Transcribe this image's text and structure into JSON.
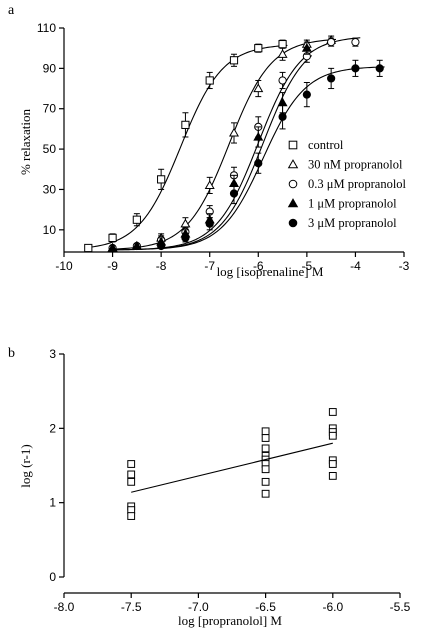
{
  "chart_data": [
    {
      "panel": "a",
      "type": "line",
      "xlabel": "log [isoprenaline] M",
      "ylabel": "% relaxation",
      "xlim": [
        -10,
        -3
      ],
      "ylim": [
        0,
        110
      ],
      "xticks": [
        -10,
        -9,
        -8,
        -7,
        -6,
        -5,
        -4,
        -3
      ],
      "yticks": [
        10,
        30,
        50,
        70,
        90,
        110
      ],
      "legend": "right",
      "series": [
        {
          "name": "control",
          "marker": "square-open",
          "x": [
            -9.5,
            -9,
            -8.5,
            -8,
            -7.5,
            -7,
            -6.5,
            -6,
            -5.5
          ],
          "y": [
            1,
            6,
            15,
            35,
            62,
            84,
            94,
            100,
            102
          ],
          "err": [
            1,
            2,
            3,
            5,
            6,
            4,
            3,
            2,
            2
          ],
          "fit": {
            "bottom": 0,
            "top": 102,
            "logEC50": -7.6,
            "hill": 1
          }
        },
        {
          "name": "30 nM propranolol",
          "marker": "triangle-open",
          "x": [
            -9,
            -8.5,
            -8,
            -7.5,
            -7,
            -6.5,
            -6,
            -5.5,
            -5,
            -4.5
          ],
          "y": [
            1,
            2,
            6,
            13,
            32,
            58,
            80,
            97,
            102,
            104
          ],
          "err": [
            1,
            1,
            2,
            3,
            4,
            5,
            4,
            3,
            2,
            2
          ],
          "fit": {
            "bottom": 0,
            "top": 105,
            "logEC50": -6.6,
            "hill": 1
          }
        },
        {
          "name": "0.3 μM propranolol",
          "marker": "circle-open",
          "x": [
            -9,
            -8.5,
            -8,
            -7.5,
            -7,
            -6.5,
            -6,
            -5.5,
            -5,
            -4.5,
            -4
          ],
          "y": [
            1,
            2,
            5,
            9,
            19,
            37,
            61,
            84,
            96,
            103,
            103
          ],
          "err": [
            1,
            1,
            2,
            2,
            3,
            4,
            5,
            4,
            3,
            2,
            2
          ],
          "fit": {
            "bottom": 0,
            "top": 106,
            "logEC50": -6.0,
            "hill": 1
          }
        },
        {
          "name": "1 μM propranolol",
          "marker": "triangle-filled",
          "x": [
            -9,
            -8.5,
            -8,
            -7.5,
            -7,
            -6.5,
            -6,
            -5.5,
            -5
          ],
          "y": [
            1,
            2,
            4,
            8,
            15,
            33,
            56,
            73,
            100
          ],
          "err": [
            1,
            1,
            2,
            2,
            3,
            4,
            5,
            5,
            3
          ],
          "fit": {
            "bottom": 0,
            "top": 106,
            "logEC50": -5.9,
            "hill": 1
          }
        },
        {
          "name": "3 μM propranolol",
          "marker": "circle-filled",
          "x": [
            -8,
            -7.5,
            -7,
            -6.5,
            -6,
            -5.5,
            -5,
            -4.5,
            -4,
            -3.5
          ],
          "y": [
            2,
            6,
            13,
            28,
            43,
            66,
            77,
            85,
            90,
            90
          ],
          "err": [
            1,
            2,
            3,
            5,
            5,
            6,
            6,
            5,
            4,
            4
          ],
          "fit": {
            "bottom": 0,
            "top": 91,
            "logEC50": -5.9,
            "hill": 1
          }
        }
      ]
    },
    {
      "panel": "b",
      "type": "scatter",
      "xlabel": "log [propranolol] M",
      "ylabel": "log (r-1)",
      "xlim": [
        -8.0,
        -5.5
      ],
      "ylim": [
        0,
        3
      ],
      "xticks": [
        -8.0,
        -7.5,
        -7.0,
        -6.5,
        -6.0,
        -5.5
      ],
      "yticks": [
        0,
        1,
        2,
        3
      ],
      "series": [
        {
          "name": "",
          "marker": "square-open",
          "x": [
            -7.5,
            -7.5,
            -7.5,
            -7.5,
            -7.5,
            -7.5,
            -6.5,
            -6.5,
            -6.5,
            -6.5,
            -6.5,
            -6.5,
            -6.5,
            -6.5,
            -6.5,
            -6.0,
            -6.0,
            -6.0,
            -6.0,
            -6.0,
            -6.0,
            -6.0
          ],
          "y": [
            1.52,
            1.38,
            1.28,
            0.95,
            0.9,
            0.82,
            1.96,
            1.87,
            1.73,
            1.63,
            1.58,
            1.52,
            1.45,
            1.28,
            1.12,
            2.22,
            2.0,
            1.95,
            1.9,
            1.57,
            1.52,
            1.36
          ]
        }
      ],
      "regression": {
        "x": [
          -7.5,
          -6.0
        ],
        "y": [
          1.14,
          1.8
        ]
      }
    }
  ]
}
